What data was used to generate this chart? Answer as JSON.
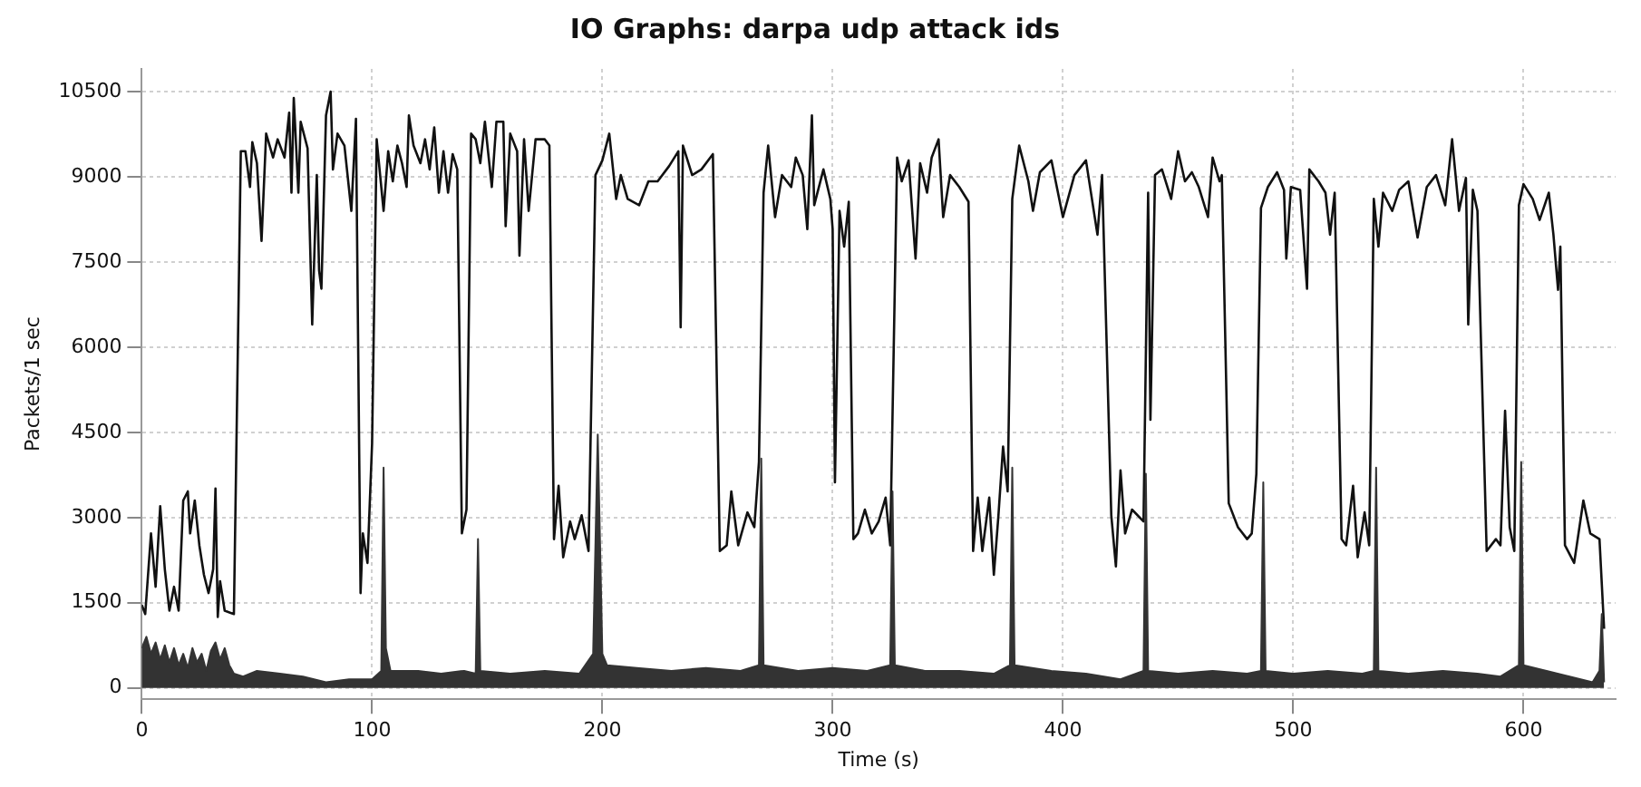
{
  "chart_data": {
    "type": "line",
    "title": "IO Graphs: darpa udp attack ids",
    "xlabel": "Time (s)",
    "ylabel": "Packets/1 sec",
    "xlim": [
      0,
      640
    ],
    "ylim": [
      -200,
      10900
    ],
    "xticks": [
      0,
      100,
      200,
      300,
      400,
      500,
      600
    ],
    "yticks": [
      0,
      1500,
      3000,
      4500,
      6000,
      7500,
      9000,
      10500
    ],
    "grid": true,
    "series": [
      {
        "type": "area",
        "color": "#333333",
        "x": [
          0,
          2,
          4,
          6,
          8,
          10,
          12,
          14,
          16,
          18,
          20,
          22,
          24,
          26,
          28,
          30,
          32,
          34,
          36,
          38,
          40,
          44,
          50,
          60,
          70,
          80,
          90,
          100,
          104,
          105,
          106,
          108,
          120,
          130,
          140,
          145,
          146,
          147,
          160,
          175,
          190,
          196,
          198,
          200,
          202,
          215,
          230,
          245,
          260,
          268,
          269,
          270,
          285,
          300,
          315,
          325,
          326,
          327,
          340,
          355,
          370,
          377,
          378,
          379,
          395,
          410,
          425,
          435,
          436,
          437,
          450,
          465,
          480,
          486,
          487,
          488,
          500,
          515,
          530,
          535,
          536,
          537,
          550,
          565,
          580,
          590,
          598,
          599,
          600,
          610,
          620,
          630,
          633,
          634,
          635
        ],
        "values": [
          700,
          900,
          600,
          800,
          500,
          750,
          450,
          700,
          400,
          600,
          350,
          700,
          450,
          600,
          300,
          650,
          800,
          500,
          700,
          400,
          250,
          200,
          300,
          250,
          200,
          100,
          150,
          150,
          300,
          3880,
          700,
          300,
          300,
          250,
          300,
          250,
          2620,
          300,
          250,
          300,
          250,
          600,
          4460,
          600,
          400,
          350,
          300,
          350,
          300,
          400,
          4040,
          400,
          300,
          350,
          300,
          400,
          3460,
          400,
          300,
          300,
          250,
          400,
          3880,
          400,
          300,
          250,
          150,
          300,
          3770,
          300,
          250,
          300,
          250,
          300,
          3620,
          300,
          250,
          300,
          250,
          300,
          3880,
          300,
          250,
          300,
          250,
          200,
          400,
          3980,
          400,
          300,
          200,
          100,
          300,
          1300,
          100
        ]
      },
      {
        "type": "line",
        "color": "#111111",
        "x": [
          0,
          1.5,
          4,
          6,
          8,
          10,
          12,
          14,
          16,
          18,
          20,
          21,
          23,
          25,
          27,
          29,
          31,
          32,
          33,
          34,
          36,
          40,
          43,
          45,
          47,
          48,
          50,
          52,
          54,
          57,
          59,
          62,
          64,
          65,
          66,
          68,
          69,
          72,
          74,
          76,
          77,
          78,
          80,
          82,
          83,
          85,
          88,
          91,
          93,
          95,
          96,
          98,
          100,
          102,
          105,
          107,
          109,
          111,
          113,
          115,
          116,
          118,
          121,
          123,
          125,
          127,
          129,
          131,
          133,
          135,
          137,
          139,
          141,
          143,
          145,
          147,
          149,
          152,
          154,
          157,
          158,
          160,
          163,
          164,
          166,
          168,
          171,
          175,
          177,
          179,
          181,
          183,
          186,
          188,
          191,
          194,
          197,
          200,
          203,
          206,
          208,
          211,
          216,
          220,
          224,
          229,
          233,
          234,
          235,
          239,
          243,
          248,
          251,
          254,
          256,
          259,
          263,
          266,
          268,
          270,
          272,
          275,
          278,
          282,
          284,
          287,
          289,
          291,
          292,
          296,
          299,
          300,
          301,
          303,
          305,
          307,
          309,
          311,
          314,
          317,
          320,
          323,
          325,
          328,
          330,
          333,
          336,
          338,
          341,
          343,
          346,
          348,
          351,
          355,
          359,
          361,
          363,
          365,
          368,
          370,
          372,
          374,
          376,
          378,
          381,
          385,
          387,
          390,
          395,
          400,
          405,
          410,
          415,
          417,
          421,
          423,
          425,
          427,
          430,
          435,
          437,
          438,
          440,
          443,
          447,
          450,
          453,
          456,
          459,
          463,
          465,
          468,
          469,
          472,
          476,
          480,
          482,
          484,
          486,
          489,
          493,
          496,
          497,
          499,
          503,
          506,
          507,
          511,
          514,
          516,
          518,
          521,
          523,
          526,
          528,
          531,
          533,
          535,
          537,
          539,
          543,
          546,
          550,
          554,
          558,
          562,
          566,
          569,
          572,
          575,
          576,
          578,
          580,
          584,
          588,
          590,
          592,
          594,
          596,
          598,
          600,
          604,
          607,
          611,
          613,
          615,
          616,
          618,
          622,
          626,
          629,
          633,
          635
        ],
        "values": [
          1460,
          1300,
          2720,
          1780,
          3200,
          2090,
          1360,
          1780,
          1360,
          3300,
          3460,
          2720,
          3300,
          2510,
          1990,
          1670,
          2090,
          3510,
          1250,
          1880,
          1360,
          1300,
          9450,
          9450,
          8820,
          9610,
          9240,
          7870,
          9760,
          9340,
          9660,
          9340,
          10130,
          8720,
          10390,
          8720,
          9970,
          9500,
          6400,
          9030,
          7350,
          7030,
          10080,
          10500,
          9130,
          9760,
          9550,
          8400,
          10020,
          1670,
          2720,
          2200,
          4300,
          9660,
          8400,
          9450,
          8920,
          9550,
          9240,
          8820,
          10080,
          9550,
          9240,
          9660,
          9130,
          9870,
          8720,
          9450,
          8720,
          9400,
          9130,
          2720,
          3140,
          9760,
          9660,
          9240,
          9970,
          8820,
          9970,
          9970,
          8130,
          9760,
          9450,
          7610,
          9660,
          8400,
          9660,
          9660,
          9550,
          2620,
          3560,
          2300,
          2930,
          2620,
          3040,
          2410,
          9030,
          9290,
          9760,
          8610,
          9030,
          8610,
          8500,
          8920,
          8920,
          9190,
          9450,
          6350,
          9550,
          9030,
          9130,
          9400,
          2410,
          2510,
          3460,
          2510,
          3090,
          2830,
          3980,
          8720,
          9550,
          8290,
          9030,
          8820,
          9340,
          9030,
          8080,
          10080,
          8500,
          9130,
          8610,
          8080,
          3620,
          8400,
          7770,
          8560,
          2620,
          2720,
          3140,
          2720,
          2930,
          3350,
          2510,
          9340,
          8920,
          9290,
          7560,
          9240,
          8720,
          9340,
          9660,
          8290,
          9030,
          8820,
          8560,
          2410,
          3350,
          2410,
          3350,
          1990,
          3040,
          4250,
          3460,
          8610,
          9550,
          8920,
          8400,
          9080,
          9290,
          8290,
          9030,
          9290,
          7980,
          9030,
          3040,
          2140,
          3830,
          2720,
          3140,
          2930,
          8720,
          4720,
          9030,
          9130,
          8610,
          9450,
          8920,
          9080,
          8820,
          8290,
          9340,
          8920,
          9030,
          3250,
          2830,
          2620,
          2720,
          3770,
          8450,
          8820,
          9080,
          8770,
          7560,
          8820,
          8770,
          7030,
          9130,
          8920,
          8720,
          7980,
          8720,
          2620,
          2510,
          3560,
          2300,
          3090,
          2510,
          8610,
          7770,
          8720,
          8400,
          8770,
          8920,
          7930,
          8820,
          9030,
          8500,
          9660,
          8400,
          8980,
          6400,
          8770,
          8400,
          2410,
          2620,
          2510,
          4880,
          2830,
          2410,
          8500,
          8870,
          8610,
          8240,
          8720,
          7980,
          7010,
          7770,
          2510,
          2200,
          3300,
          2720,
          2620,
          1040
        ]
      }
    ]
  }
}
